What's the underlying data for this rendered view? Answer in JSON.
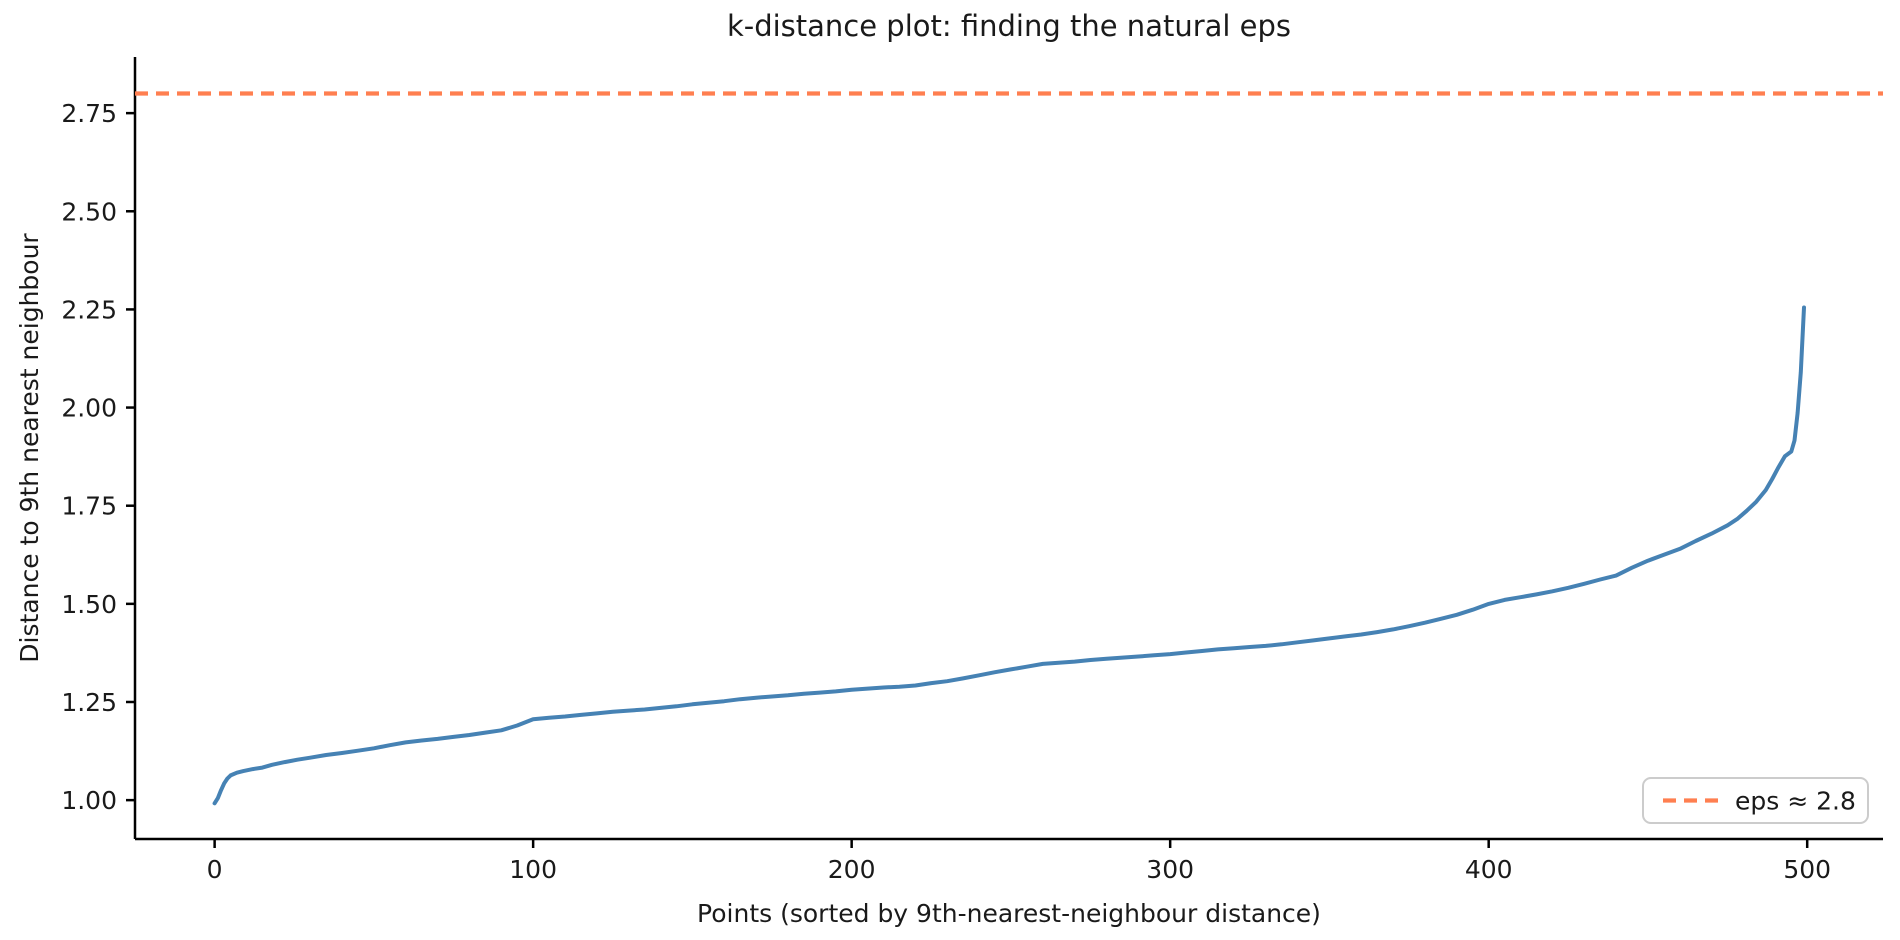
{
  "chart_data": {
    "type": "line",
    "title": "k-distance plot: finding the natural eps",
    "xlabel": "Points (sorted by 9th-nearest-neighbour distance)",
    "ylabel": "Distance to 9th nearest neighbour",
    "xlim": [
      -25,
      523.8
    ],
    "ylim": [
      0.901,
      2.893
    ],
    "x_ticks": [
      0,
      100,
      200,
      300,
      400,
      500
    ],
    "y_ticks": [
      1.0,
      1.25,
      1.5,
      1.75,
      2.0,
      2.25,
      2.5,
      2.75
    ],
    "grid": false,
    "legend": {
      "position": "lower right",
      "entries": [
        {
          "label": "eps ≈ 2.8",
          "line_style": "dashed",
          "color": "#FF7F50"
        }
      ]
    },
    "hline": {
      "y": 2.8,
      "color": "#FF7F50",
      "style": "dashed"
    },
    "series": [
      {
        "name": "k-distance curve",
        "color": "#4682B4",
        "points": [
          [
            0,
            0.992
          ],
          [
            1,
            1.005
          ],
          [
            2,
            1.025
          ],
          [
            3,
            1.043
          ],
          [
            4,
            1.055
          ],
          [
            5,
            1.063
          ],
          [
            7,
            1.07
          ],
          [
            9,
            1.074
          ],
          [
            12,
            1.079
          ],
          [
            15,
            1.083
          ],
          [
            18,
            1.09
          ],
          [
            22,
            1.097
          ],
          [
            26,
            1.103
          ],
          [
            30,
            1.108
          ],
          [
            35,
            1.115
          ],
          [
            40,
            1.12
          ],
          [
            45,
            1.126
          ],
          [
            50,
            1.132
          ],
          [
            55,
            1.14
          ],
          [
            60,
            1.147
          ],
          [
            65,
            1.152
          ],
          [
            70,
            1.156
          ],
          [
            75,
            1.161
          ],
          [
            80,
            1.166
          ],
          [
            85,
            1.172
          ],
          [
            90,
            1.178
          ],
          [
            95,
            1.19
          ],
          [
            100,
            1.206
          ],
          [
            105,
            1.21
          ],
          [
            110,
            1.213
          ],
          [
            115,
            1.217
          ],
          [
            120,
            1.221
          ],
          [
            125,
            1.225
          ],
          [
            130,
            1.228
          ],
          [
            135,
            1.231
          ],
          [
            140,
            1.235
          ],
          [
            145,
            1.239
          ],
          [
            150,
            1.244
          ],
          [
            155,
            1.248
          ],
          [
            160,
            1.252
          ],
          [
            165,
            1.257
          ],
          [
            170,
            1.261
          ],
          [
            175,
            1.264
          ],
          [
            180,
            1.267
          ],
          [
            185,
            1.271
          ],
          [
            190,
            1.274
          ],
          [
            195,
            1.277
          ],
          [
            200,
            1.281
          ],
          [
            205,
            1.284
          ],
          [
            210,
            1.287
          ],
          [
            215,
            1.289
          ],
          [
            220,
            1.292
          ],
          [
            225,
            1.298
          ],
          [
            230,
            1.303
          ],
          [
            235,
            1.31
          ],
          [
            240,
            1.318
          ],
          [
            245,
            1.326
          ],
          [
            250,
            1.333
          ],
          [
            255,
            1.34
          ],
          [
            260,
            1.347
          ],
          [
            265,
            1.35
          ],
          [
            270,
            1.353
          ],
          [
            275,
            1.357
          ],
          [
            280,
            1.36
          ],
          [
            285,
            1.363
          ],
          [
            290,
            1.366
          ],
          [
            295,
            1.369
          ],
          [
            300,
            1.372
          ],
          [
            305,
            1.376
          ],
          [
            310,
            1.38
          ],
          [
            315,
            1.384
          ],
          [
            320,
            1.387
          ],
          [
            325,
            1.39
          ],
          [
            330,
            1.393
          ],
          [
            335,
            1.397
          ],
          [
            340,
            1.402
          ],
          [
            345,
            1.407
          ],
          [
            350,
            1.412
          ],
          [
            355,
            1.417
          ],
          [
            360,
            1.422
          ],
          [
            365,
            1.428
          ],
          [
            370,
            1.435
          ],
          [
            375,
            1.443
          ],
          [
            380,
            1.452
          ],
          [
            385,
            1.462
          ],
          [
            390,
            1.472
          ],
          [
            395,
            1.485
          ],
          [
            400,
            1.5
          ],
          [
            405,
            1.51
          ],
          [
            410,
            1.517
          ],
          [
            415,
            1.524
          ],
          [
            420,
            1.532
          ],
          [
            425,
            1.541
          ],
          [
            430,
            1.551
          ],
          [
            435,
            1.562
          ],
          [
            440,
            1.572
          ],
          [
            445,
            1.592
          ],
          [
            450,
            1.61
          ],
          [
            455,
            1.625
          ],
          [
            460,
            1.64
          ],
          [
            465,
            1.66
          ],
          [
            470,
            1.679
          ],
          [
            475,
            1.7
          ],
          [
            478,
            1.716
          ],
          [
            481,
            1.737
          ],
          [
            484,
            1.76
          ],
          [
            487,
            1.79
          ],
          [
            489,
            1.818
          ],
          [
            491,
            1.848
          ],
          [
            493,
            1.876
          ],
          [
            494,
            1.882
          ],
          [
            495,
            1.888
          ],
          [
            496,
            1.916
          ],
          [
            497,
            1.986
          ],
          [
            498,
            2.09
          ],
          [
            499,
            2.255
          ]
        ]
      }
    ]
  },
  "colors": {
    "curve": "#4682B4",
    "eps_line": "#FF7F50",
    "spine": "#000000",
    "text": "#1a1a1a",
    "legend_border": "#cccccc",
    "background": "#ffffff"
  }
}
